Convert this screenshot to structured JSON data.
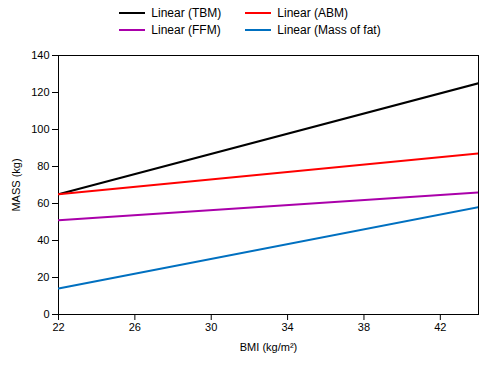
{
  "chart_data": {
    "type": "line",
    "x": [
      22,
      44
    ],
    "series": [
      {
        "name": "Linear (TBM)",
        "color": "#000000",
        "values": [
          65,
          125
        ]
      },
      {
        "name": "Linear (ABM)",
        "color": "#FF0000",
        "values": [
          65,
          87
        ]
      },
      {
        "name": "Linear (FFM)",
        "color": "#AA00AA",
        "values": [
          51,
          66
        ]
      },
      {
        "name": "Linear (Mass of fat)",
        "color": "#0070C0",
        "values": [
          14,
          58
        ]
      }
    ],
    "xlabel": "BMI (kg/m²)",
    "ylabel": "MASS (kg)",
    "xlim": [
      22,
      44
    ],
    "ylim": [
      0,
      140
    ],
    "xticks": [
      22,
      26,
      30,
      34,
      38,
      42
    ],
    "yticks": [
      0,
      20,
      40,
      60,
      80,
      100,
      120,
      140
    ],
    "grid": false,
    "legend": "top"
  }
}
